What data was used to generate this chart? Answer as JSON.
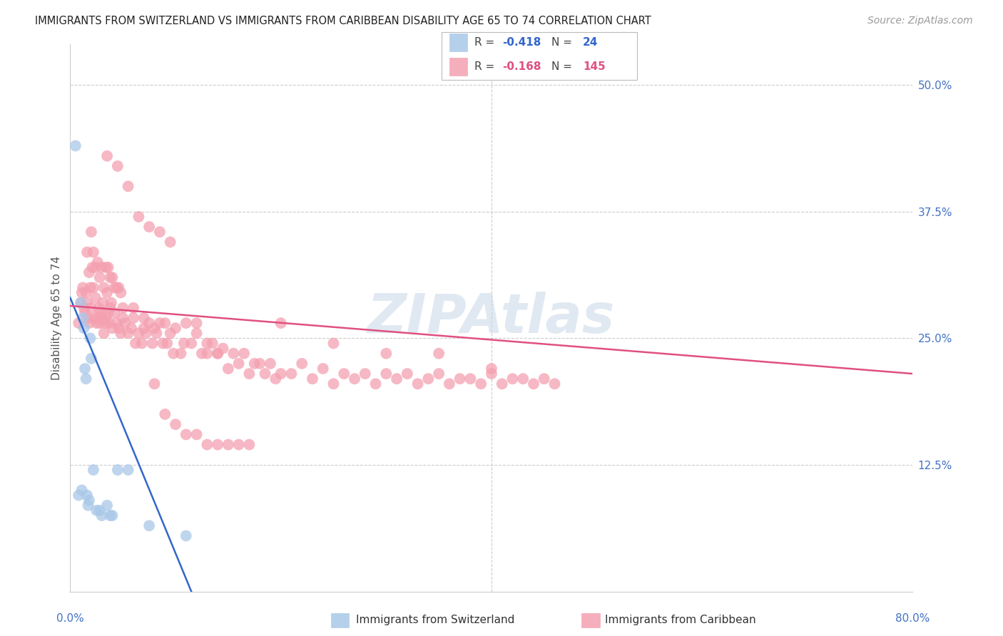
{
  "title": "IMMIGRANTS FROM SWITZERLAND VS IMMIGRANTS FROM CARIBBEAN DISABILITY AGE 65 TO 74 CORRELATION CHART",
  "source": "Source: ZipAtlas.com",
  "ylabel": "Disability Age 65 to 74",
  "ytick_labels": [
    "50.0%",
    "37.5%",
    "25.0%",
    "12.5%"
  ],
  "ytick_values": [
    0.5,
    0.375,
    0.25,
    0.125
  ],
  "xlim": [
    0.0,
    0.8
  ],
  "ylim": [
    0.0,
    0.54
  ],
  "color_swiss": "#a8c8e8",
  "color_carib": "#f4a0b0",
  "trendline_swiss_color": "#3366cc",
  "trendline_carib_color": "#e05080",
  "swiss_x": [
    0.005,
    0.008,
    0.01,
    0.011,
    0.012,
    0.013,
    0.014,
    0.015,
    0.016,
    0.017,
    0.018,
    0.019,
    0.02,
    0.022,
    0.025,
    0.028,
    0.03,
    0.035,
    0.038,
    0.04,
    0.045,
    0.055,
    0.075,
    0.11
  ],
  "swiss_y": [
    0.44,
    0.095,
    0.285,
    0.1,
    0.27,
    0.26,
    0.22,
    0.21,
    0.095,
    0.085,
    0.09,
    0.25,
    0.23,
    0.12,
    0.08,
    0.08,
    0.075,
    0.085,
    0.075,
    0.075,
    0.12,
    0.12,
    0.065,
    0.055
  ],
  "carib_x": [
    0.008,
    0.01,
    0.011,
    0.012,
    0.013,
    0.014,
    0.015,
    0.016,
    0.017,
    0.018,
    0.019,
    0.02,
    0.021,
    0.022,
    0.023,
    0.024,
    0.025,
    0.026,
    0.027,
    0.028,
    0.029,
    0.03,
    0.031,
    0.032,
    0.033,
    0.034,
    0.035,
    0.036,
    0.037,
    0.038,
    0.039,
    0.04,
    0.042,
    0.044,
    0.046,
    0.048,
    0.05,
    0.052,
    0.055,
    0.058,
    0.06,
    0.062,
    0.065,
    0.068,
    0.07,
    0.072,
    0.075,
    0.078,
    0.08,
    0.082,
    0.085,
    0.088,
    0.09,
    0.092,
    0.095,
    0.098,
    0.1,
    0.105,
    0.108,
    0.11,
    0.115,
    0.12,
    0.125,
    0.13,
    0.135,
    0.14,
    0.145,
    0.15,
    0.155,
    0.16,
    0.165,
    0.17,
    0.175,
    0.18,
    0.185,
    0.19,
    0.195,
    0.2,
    0.21,
    0.22,
    0.23,
    0.24,
    0.25,
    0.26,
    0.27,
    0.28,
    0.29,
    0.3,
    0.31,
    0.32,
    0.33,
    0.34,
    0.35,
    0.36,
    0.37,
    0.38,
    0.39,
    0.4,
    0.41,
    0.42,
    0.43,
    0.44,
    0.45,
    0.46,
    0.016,
    0.018,
    0.02,
    0.022,
    0.024,
    0.026,
    0.028,
    0.03,
    0.032,
    0.034,
    0.036,
    0.038,
    0.04,
    0.042,
    0.044,
    0.046,
    0.048,
    0.05,
    0.06,
    0.07,
    0.08,
    0.09,
    0.1,
    0.11,
    0.12,
    0.13,
    0.14,
    0.15,
    0.16,
    0.17,
    0.035,
    0.045,
    0.055,
    0.065,
    0.075,
    0.085,
    0.095,
    0.12,
    0.13,
    0.14,
    0.2,
    0.25,
    0.3,
    0.35,
    0.4
  ],
  "carib_y": [
    0.265,
    0.285,
    0.295,
    0.3,
    0.28,
    0.275,
    0.295,
    0.285,
    0.27,
    0.265,
    0.3,
    0.28,
    0.32,
    0.3,
    0.27,
    0.29,
    0.265,
    0.27,
    0.28,
    0.265,
    0.275,
    0.27,
    0.285,
    0.255,
    0.265,
    0.27,
    0.295,
    0.275,
    0.265,
    0.28,
    0.285,
    0.26,
    0.275,
    0.265,
    0.26,
    0.255,
    0.27,
    0.265,
    0.255,
    0.26,
    0.28,
    0.245,
    0.255,
    0.245,
    0.27,
    0.255,
    0.265,
    0.245,
    0.26,
    0.255,
    0.265,
    0.245,
    0.265,
    0.245,
    0.255,
    0.235,
    0.26,
    0.235,
    0.245,
    0.265,
    0.245,
    0.255,
    0.235,
    0.235,
    0.245,
    0.235,
    0.24,
    0.22,
    0.235,
    0.225,
    0.235,
    0.215,
    0.225,
    0.225,
    0.215,
    0.225,
    0.21,
    0.215,
    0.215,
    0.225,
    0.21,
    0.22,
    0.205,
    0.215,
    0.21,
    0.215,
    0.205,
    0.215,
    0.21,
    0.215,
    0.205,
    0.21,
    0.215,
    0.205,
    0.21,
    0.21,
    0.205,
    0.215,
    0.205,
    0.21,
    0.21,
    0.205,
    0.21,
    0.205,
    0.335,
    0.315,
    0.355,
    0.335,
    0.32,
    0.325,
    0.31,
    0.32,
    0.3,
    0.32,
    0.32,
    0.31,
    0.31,
    0.3,
    0.3,
    0.3,
    0.295,
    0.28,
    0.27,
    0.26,
    0.205,
    0.175,
    0.165,
    0.155,
    0.155,
    0.145,
    0.145,
    0.145,
    0.145,
    0.145,
    0.43,
    0.42,
    0.4,
    0.37,
    0.36,
    0.355,
    0.345,
    0.265,
    0.245,
    0.235,
    0.265,
    0.245,
    0.235,
    0.235,
    0.22
  ],
  "swiss_trend_x": [
    0.0,
    0.115
  ],
  "swiss_trend_y": [
    0.29,
    0.0
  ],
  "carib_trend_x": [
    0.0,
    0.8
  ],
  "carib_trend_y": [
    0.282,
    0.215
  ],
  "background_color": "#ffffff",
  "title_color": "#222222",
  "axis_label_color": "#555555",
  "tick_label_color": "#4472c4",
  "grid_color": "#cccccc",
  "title_fontsize": 10.5,
  "axis_label_fontsize": 11,
  "tick_fontsize": 11,
  "source_fontsize": 10
}
